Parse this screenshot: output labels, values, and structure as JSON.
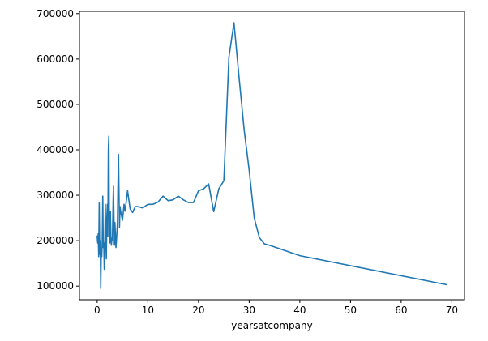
{
  "chart_data": {
    "type": "line",
    "title": "",
    "xlabel": "yearsatcompany",
    "ylabel": "",
    "xlim": [
      -3.5,
      72.5
    ],
    "ylim": [
      70000,
      705000
    ],
    "xticks": [
      0,
      10,
      20,
      30,
      40,
      50,
      60,
      70
    ],
    "xtick_labels": [
      "0",
      "10",
      "20",
      "30",
      "40",
      "50",
      "60",
      "70"
    ],
    "yticks": [
      100000,
      200000,
      300000,
      400000,
      500000,
      600000,
      700000
    ],
    "ytick_labels": [
      "100000",
      "200000",
      "300000",
      "400000",
      "500000",
      "600000",
      "700000"
    ],
    "grid": false,
    "legend": "none",
    "series": [
      {
        "color": "#1f77b4",
        "x": [
          0,
          0.1,
          0.2,
          0.3,
          0.4,
          0.5,
          0.6,
          0.7,
          0.8,
          0.9,
          1,
          1.1,
          1.2,
          1.3,
          1.4,
          1.5,
          1.6,
          1.7,
          1.8,
          1.9,
          2,
          2.1,
          2.2,
          2.3,
          2.4,
          2.5,
          2.6,
          2.7,
          2.8,
          2.9,
          3,
          3.2,
          3.4,
          3.5,
          3.7,
          3.8,
          4,
          4.2,
          4.4,
          4.5,
          4.7,
          5,
          5.3,
          5.5,
          6,
          6.5,
          7,
          7.5,
          8,
          9,
          10,
          11,
          12,
          13,
          14,
          15,
          16,
          17,
          18,
          19,
          20,
          21,
          22,
          23,
          24,
          25,
          26,
          27,
          28,
          29,
          30,
          31,
          32,
          33,
          34,
          40,
          69
        ],
        "y": [
          210000,
          195000,
          215000,
          165000,
          283000,
          170000,
          200000,
          95000,
          180000,
          165000,
          200000,
          298000,
          185000,
          195000,
          137000,
          190000,
          280000,
          200000,
          160000,
          250000,
          280000,
          210000,
          400000,
          430000,
          200000,
          195000,
          265000,
          210000,
          190000,
          205000,
          200000,
          320000,
          190000,
          240000,
          185000,
          200000,
          240000,
          390000,
          230000,
          275000,
          260000,
          245000,
          280000,
          265000,
          310000,
          270000,
          262000,
          275000,
          275000,
          272000,
          280000,
          280000,
          285000,
          298000,
          288000,
          290000,
          298000,
          290000,
          284000,
          284000,
          310000,
          314000,
          325000,
          264000,
          314000,
          332000,
          604000,
          680000,
          560000,
          445000,
          355000,
          250000,
          207000,
          193000,
          190000,
          167000,
          103000
        ]
      }
    ]
  }
}
